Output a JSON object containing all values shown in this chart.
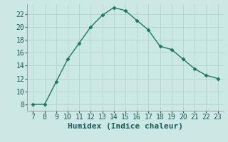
{
  "x": [
    7,
    8,
    9,
    10,
    11,
    12,
    13,
    14,
    15,
    16,
    17,
    18,
    19,
    20,
    21,
    22,
    23
  ],
  "y": [
    8,
    8,
    11.5,
    15,
    17.5,
    20,
    21.8,
    23,
    22.5,
    21,
    19.5,
    17,
    16.5,
    15,
    13.5,
    12.5,
    12
  ],
  "line_color": "#1a7a5e",
  "marker": "D",
  "marker_color": "#1a7a5e",
  "bg_color": "#cce8e4",
  "grid_color": "#b0d4cf",
  "xlabel": "Humidex (Indice chaleur)",
  "xlim": [
    6.5,
    23.5
  ],
  "ylim": [
    7,
    23.5
  ],
  "xticks": [
    7,
    8,
    9,
    10,
    11,
    12,
    13,
    14,
    15,
    16,
    17,
    18,
    19,
    20,
    21,
    22,
    23
  ],
  "yticks": [
    8,
    10,
    12,
    14,
    16,
    18,
    20,
    22
  ],
  "xlabel_fontsize": 8,
  "tick_fontsize": 7
}
